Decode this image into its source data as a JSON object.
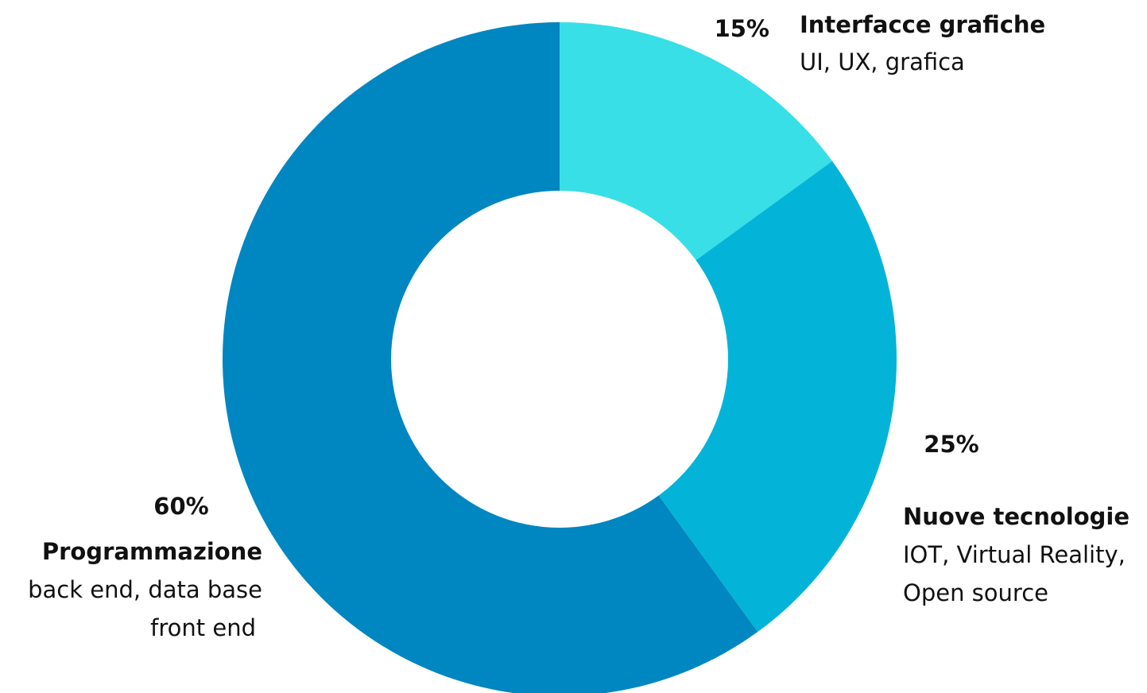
{
  "chart_data": {
    "type": "pie",
    "style": "donut",
    "slices": [
      {
        "percent_label": "15%",
        "value": 15,
        "title": "Interfacce grafiche",
        "desc_lines": [
          "UI, UX, grafica"
        ],
        "color": "#38DFE6"
      },
      {
        "percent_label": "25%",
        "value": 25,
        "title": "Nuove tecnologie",
        "desc_lines": [
          "IOT, Virtual Reality,",
          "Open source"
        ],
        "color": "#03B4D8"
      },
      {
        "percent_label": "60%",
        "value": 60,
        "title": "Programmazione",
        "desc_lines": [
          "back end, data base",
          "front end"
        ],
        "color": "#0086C0"
      }
    ],
    "legend": "none",
    "grid": false
  }
}
